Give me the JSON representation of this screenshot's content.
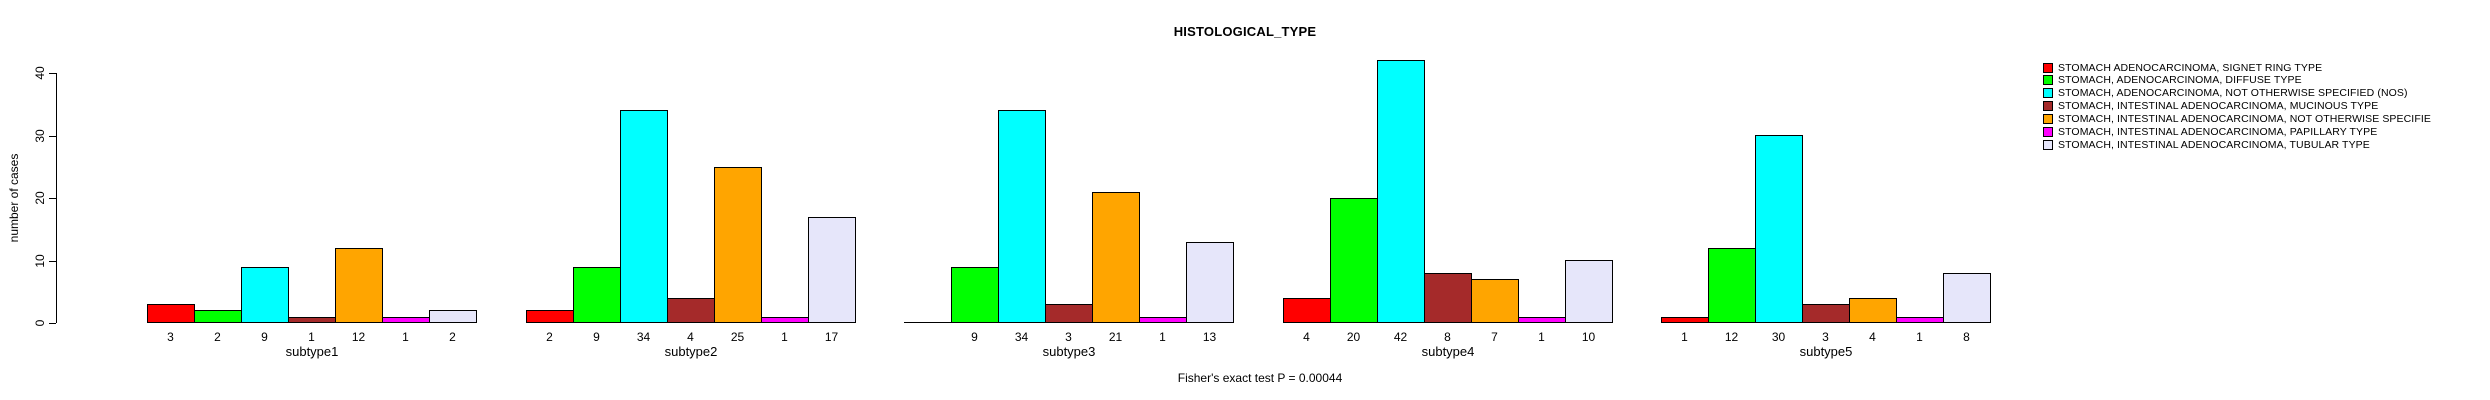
{
  "chart_data": {
    "type": "bar",
    "title": "HISTOLOGICAL_TYPE",
    "ylabel": "number of cases",
    "ylim": [
      0,
      40
    ],
    "yticks": [
      0,
      10,
      20,
      30,
      40
    ],
    "grid": false,
    "legend_position": "right",
    "annotation": "Fisher's exact test P = 0.00044",
    "categories": [
      "subtype1",
      "subtype2",
      "subtype3",
      "subtype4",
      "subtype5"
    ],
    "series": [
      {
        "name": "STOMACH ADENOCARCINOMA, SIGNET RING TYPE",
        "color": "#FF0000",
        "values": [
          3,
          2,
          0,
          4,
          1
        ]
      },
      {
        "name": "STOMACH, ADENOCARCINOMA, DIFFUSE TYPE",
        "color": "#00FF00",
        "values": [
          2,
          9,
          9,
          20,
          12
        ]
      },
      {
        "name": "STOMACH, ADENOCARCINOMA, NOT OTHERWISE SPECIFIED (NOS)",
        "color": "#00FFFF",
        "values": [
          9,
          34,
          34,
          42,
          30
        ]
      },
      {
        "name": "STOMACH, INTESTINAL ADENOCARCINOMA, MUCINOUS TYPE",
        "color": "#A52A2A",
        "values": [
          1,
          4,
          3,
          8,
          3
        ]
      },
      {
        "name": "STOMACH, INTESTINAL ADENOCARCINOMA, NOT OTHERWISE SPECIFIE",
        "color": "#FFA500",
        "values": [
          12,
          25,
          21,
          7,
          4
        ]
      },
      {
        "name": "STOMACH, INTESTINAL ADENOCARCINOMA, PAPILLARY TYPE",
        "color": "#FF00FF",
        "values": [
          1,
          1,
          1,
          1,
          1
        ]
      },
      {
        "name": "STOMACH, INTESTINAL ADENOCARCINOMA, TUBULAR TYPE",
        "color": "#E6E6FA",
        "values": [
          2,
          17,
          13,
          10,
          8
        ]
      }
    ],
    "bar_value_labels_shown": true,
    "zero_value_label": ""
  }
}
